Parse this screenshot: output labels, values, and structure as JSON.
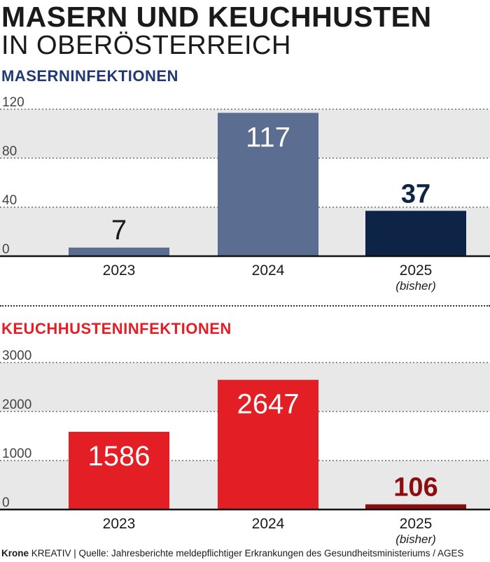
{
  "header": {
    "title_line1": "MASERN UND KEUCHHUSTEN",
    "title_line2": "IN OBERÖSTERREICH"
  },
  "footer": {
    "brand_bold": "Krone",
    "brand_rest": " KREATIV | Quelle: Jahresberichte meldepflichtiger Erkrankungen des Gesundheitsministeriums / AGES"
  },
  "colors": {
    "measles_past": "#5c6d92",
    "measles_current": "#0e2447",
    "measles_title": "#213a73",
    "pertussis_past": "#e31e24",
    "pertussis_current": "#8b0d10",
    "band": "#e8e8e8"
  },
  "chart_data": [
    {
      "type": "bar",
      "title": "MASERNINFEKTIONEN",
      "categories": [
        "2023",
        "2024",
        "2025"
      ],
      "category_notes": [
        "",
        "",
        "(bisher)"
      ],
      "values": [
        7,
        117,
        37
      ],
      "value_labels": [
        "7",
        "117",
        "37"
      ],
      "yticks": [
        0,
        40,
        80,
        120
      ],
      "ylim": [
        0,
        120
      ],
      "grid": true,
      "legend": "none"
    },
    {
      "type": "bar",
      "title": "KEUCHHUSTENINFEKTIONEN",
      "categories": [
        "2023",
        "2024",
        "2025"
      ],
      "category_notes": [
        "",
        "",
        "(bisher)"
      ],
      "values": [
        1586,
        2647,
        106
      ],
      "value_labels": [
        "1586",
        "2647",
        "106"
      ],
      "yticks": [
        0,
        1000,
        2000,
        3000
      ],
      "ylim": [
        0,
        3000
      ],
      "grid": true,
      "legend": "none"
    }
  ]
}
